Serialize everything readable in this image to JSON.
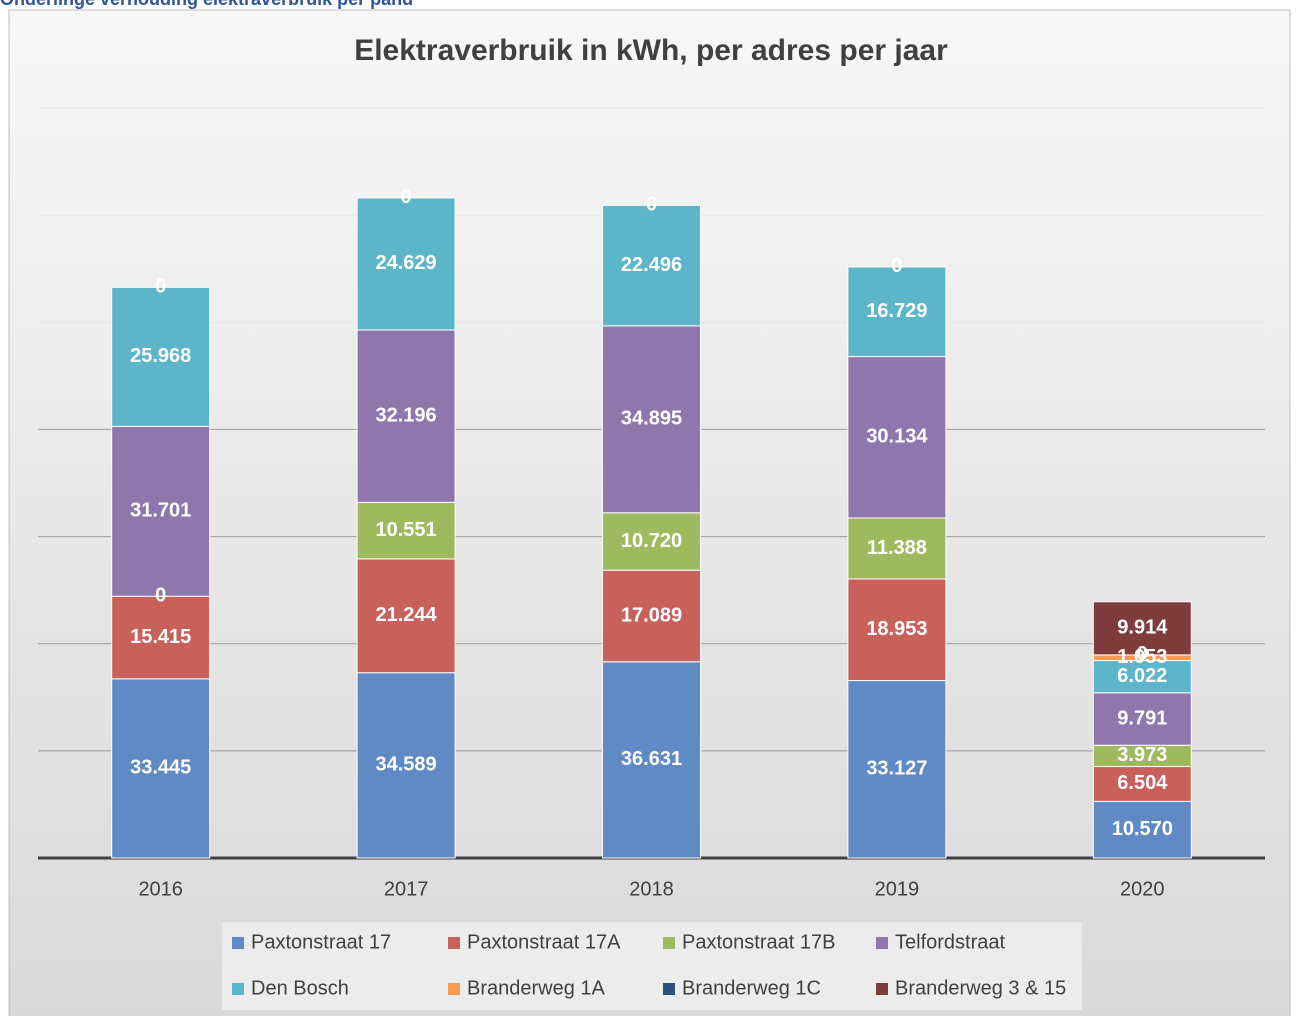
{
  "heading": "Onderlinge verhouding elektraverbruik per pand",
  "chart_data": {
    "type": "bar",
    "stacked": true,
    "title": "Elektraverbruik in kWh, per adres per jaar",
    "categories": [
      "2016",
      "2017",
      "2018",
      "2019",
      "2020"
    ],
    "ylim": [
      0,
      140000
    ],
    "yticks": [
      0,
      20000,
      40000,
      60000,
      80000,
      100000,
      120000,
      140000
    ],
    "grid": true,
    "legend": "bottom",
    "series": [
      {
        "name": "Paxtonstraat 17",
        "color": "#5f8ac4",
        "values": [
          33445,
          34589,
          36631,
          33127,
          10570
        ],
        "value_labels": [
          "33.445",
          "34.589",
          "36.631",
          "33.127",
          "10.570"
        ]
      },
      {
        "name": "Paxtonstraat 17A",
        "color": "#c8605c",
        "values": [
          15415,
          21244,
          17089,
          18953,
          6504
        ],
        "value_labels": [
          "15.415",
          "21.244",
          "17.089",
          "18.953",
          "6.504"
        ]
      },
      {
        "name": "Paxtonstraat 17B",
        "color": "#9dbb5e",
        "values": [
          0,
          10551,
          10720,
          11388,
          3973
        ],
        "value_labels": [
          "0",
          "10.551",
          "10.720",
          "11.388",
          "3.973"
        ]
      },
      {
        "name": "Telfordstraat",
        "color": "#8f77ad",
        "values": [
          31701,
          32196,
          34895,
          30134,
          9791
        ],
        "value_labels": [
          "31.701",
          "32.196",
          "34.895",
          "30.134",
          "9.791"
        ]
      },
      {
        "name": "Den Bosch",
        "color": "#5db5ca",
        "values": [
          25968,
          24629,
          22496,
          16729,
          6022
        ],
        "value_labels": [
          "25.968",
          "24.629",
          "22.496",
          "16.729",
          "6.022"
        ]
      },
      {
        "name": "Branderweg 1A",
        "color": "#f79a52",
        "values": [
          0,
          0,
          0,
          0,
          1053
        ],
        "value_labels": [
          "0",
          "0",
          "0",
          "0",
          "1.053"
        ]
      },
      {
        "name": "Branderweg 1C",
        "color": "#2e4f78",
        "values": [
          null,
          null,
          null,
          null,
          0
        ],
        "value_labels": [
          null,
          null,
          null,
          null,
          "0"
        ]
      },
      {
        "name": "Branderweg 3 & 15",
        "color": "#7e3c3c",
        "values": [
          null,
          null,
          null,
          null,
          9914
        ],
        "value_labels": [
          null,
          null,
          null,
          null,
          "9.914"
        ]
      }
    ]
  }
}
